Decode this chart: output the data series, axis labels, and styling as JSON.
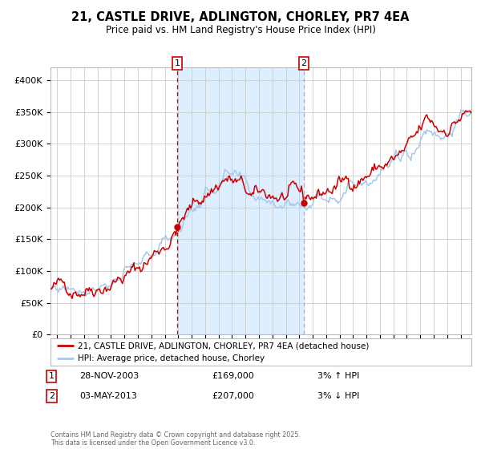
{
  "title": "21, CASTLE DRIVE, ADLINGTON, CHORLEY, PR7 4EA",
  "subtitle": "Price paid vs. HM Land Registry's House Price Index (HPI)",
  "ylim": [
    0,
    420000
  ],
  "xlim_start": 1994.5,
  "xlim_end": 2025.8,
  "yticks": [
    0,
    50000,
    100000,
    150000,
    200000,
    250000,
    300000,
    350000,
    400000
  ],
  "ytick_labels": [
    "£0",
    "£50K",
    "£100K",
    "£150K",
    "£200K",
    "£250K",
    "£300K",
    "£350K",
    "£400K"
  ],
  "xticks": [
    1995,
    1996,
    1997,
    1998,
    1999,
    2000,
    2001,
    2002,
    2003,
    2004,
    2005,
    2006,
    2007,
    2008,
    2009,
    2010,
    2011,
    2012,
    2013,
    2014,
    2015,
    2016,
    2017,
    2018,
    2019,
    2020,
    2021,
    2022,
    2023,
    2024,
    2025
  ],
  "sale1_date": 2003.91,
  "sale1_price": 169000,
  "sale2_date": 2013.34,
  "sale2_price": 207000,
  "line1_color": "#cc0000",
  "line2_color": "#a8c8e8",
  "shading_color": "#ddeeff",
  "marker_color": "#cc0000",
  "grid_color": "#cccccc",
  "bg_color": "#ffffff",
  "legend1_label": "21, CASTLE DRIVE, ADLINGTON, CHORLEY, PR7 4EA (detached house)",
  "legend2_label": "HPI: Average price, detached house, Chorley",
  "footer": "Contains HM Land Registry data © Crown copyright and database right 2025.\nThis data is licensed under the Open Government Licence v3.0.",
  "table_row1": [
    "1",
    "28-NOV-2003",
    "£169,000",
    "3% ↑ HPI"
  ],
  "table_row2": [
    "2",
    "03-MAY-2013",
    "£207,000",
    "3% ↓ HPI"
  ]
}
